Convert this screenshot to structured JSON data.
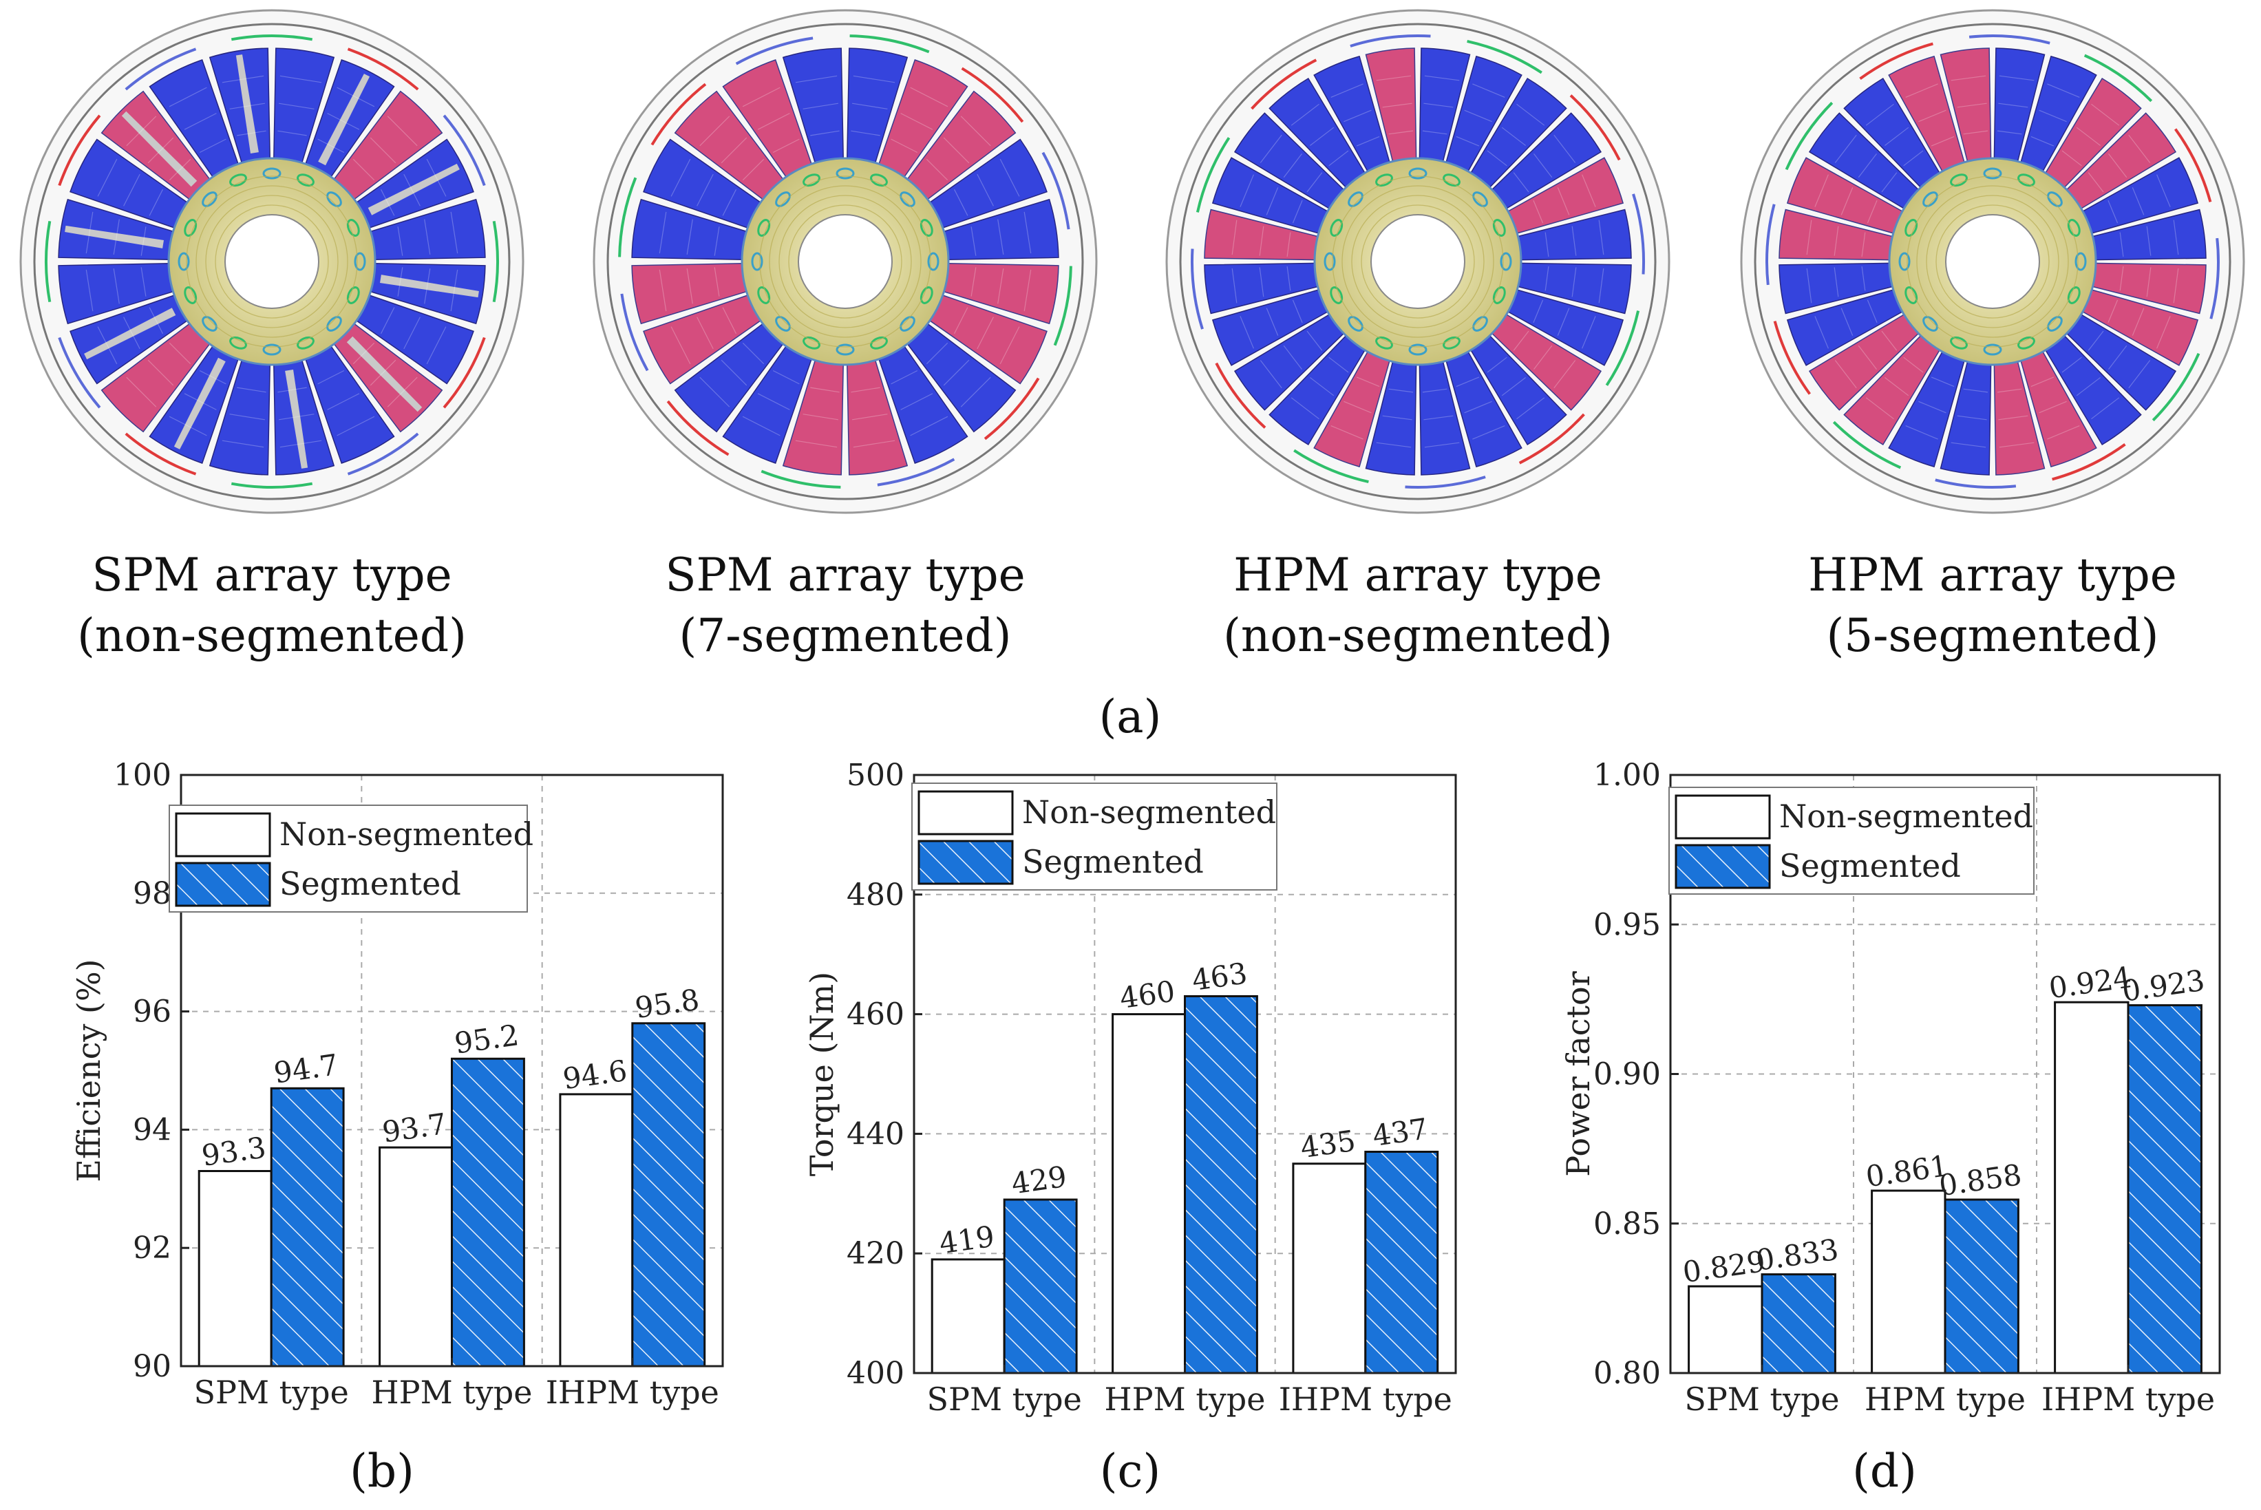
{
  "figure": {
    "motors": [
      {
        "line1": "SPM array type",
        "line2": "(non-segmented)",
        "variant": "spm-non"
      },
      {
        "line1": "SPM array type",
        "line2": "(7-segmented)",
        "variant": "spm-seg"
      },
      {
        "line1": "HPM array type",
        "line2": "(non-segmented)",
        "variant": "hpm-non"
      },
      {
        "line1": "HPM array type",
        "line2": "(5-segmented)",
        "variant": "hpm-seg"
      }
    ],
    "panel_labels": {
      "a": "(a)",
      "b": "(b)",
      "c": "(c)",
      "d": "(d)"
    }
  },
  "colors": {
    "segmented_fill": "#1a73d9",
    "hatch": "#ffffff",
    "stator_blue": "#2b3bdc",
    "magnet_red": "#d0306a",
    "coil_green": "#2fbf6a",
    "coil_red": "#e03a3a",
    "core_yellow": "#d8cf7a"
  },
  "chart_data": [
    {
      "type": "bar",
      "panel": "b",
      "categories": [
        "SPM type",
        "HPM type",
        "IHPM type"
      ],
      "series": [
        {
          "name": "Non-segmented",
          "values": [
            93.3,
            93.7,
            94.6
          ]
        },
        {
          "name": "Segmented",
          "values": [
            94.7,
            95.2,
            95.8
          ]
        }
      ],
      "value_labels": [
        [
          "93.3",
          "94.7"
        ],
        [
          "93.7",
          "95.2"
        ],
        [
          "94.6",
          "95.8"
        ]
      ],
      "ylabel": "Efficiency (%)",
      "xlabel": "",
      "ylim": [
        90,
        100
      ],
      "yticks": [
        "90",
        "92",
        "94",
        "96",
        "98",
        "100"
      ],
      "ytick_values": [
        90,
        92,
        94,
        96,
        98,
        100
      ],
      "grid": true,
      "legend": "top-left"
    },
    {
      "type": "bar",
      "panel": "c",
      "categories": [
        "SPM type",
        "HPM type",
        "IHPM type"
      ],
      "series": [
        {
          "name": "Non-segmented",
          "values": [
            419,
            460,
            435
          ]
        },
        {
          "name": "Segmented",
          "values": [
            429,
            463,
            437
          ]
        }
      ],
      "value_labels": [
        [
          "419",
          "429"
        ],
        [
          "460",
          "463"
        ],
        [
          "435",
          "437"
        ]
      ],
      "ylabel": "Torque (Nm)",
      "xlabel": "",
      "ylim": [
        400,
        500
      ],
      "yticks": [
        "400",
        "420",
        "440",
        "460",
        "480",
        "500"
      ],
      "ytick_values": [
        400,
        420,
        440,
        460,
        480,
        500
      ],
      "grid": true,
      "legend": "top-left"
    },
    {
      "type": "bar",
      "panel": "d",
      "categories": [
        "SPM type",
        "HPM type",
        "IHPM type"
      ],
      "series": [
        {
          "name": "Non-segmented",
          "values": [
            0.829,
            0.861,
            0.924
          ]
        },
        {
          "name": "Segmented",
          "values": [
            0.833,
            0.858,
            0.923
          ]
        }
      ],
      "value_labels": [
        [
          "0.829",
          "0.833"
        ],
        [
          "0.861",
          "0.858"
        ],
        [
          "0.924",
          "0.923"
        ]
      ],
      "ylabel": "Power factor",
      "xlabel": "",
      "ylim": [
        0.8,
        1.0
      ],
      "yticks": [
        "0.80",
        "0.85",
        "0.90",
        "0.95",
        "1.00"
      ],
      "ytick_values": [
        0.8,
        0.85,
        0.9,
        0.95,
        1.0
      ],
      "grid": true,
      "legend": "top-left"
    }
  ]
}
